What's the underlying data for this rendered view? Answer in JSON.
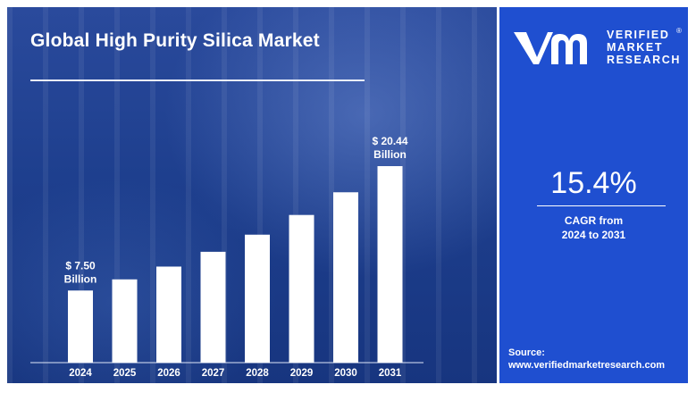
{
  "chart_data": {
    "type": "bar",
    "title": "Global High Purity Silica Market",
    "categories": [
      "2024",
      "2025",
      "2026",
      "2027",
      "2028",
      "2029",
      "2030",
      "2031"
    ],
    "values": [
      7.5,
      8.66,
      9.99,
      11.53,
      13.31,
      15.36,
      17.72,
      20.44
    ],
    "unit": "Billion",
    "annotations": [
      {
        "category": "2024",
        "line1": "$ 7.50",
        "line2": "Billion"
      },
      {
        "category": "2031",
        "line1": "$ 20.44",
        "line2": "Billion"
      }
    ],
    "bar_color": "#ffffff",
    "grid": false
  },
  "sidebar": {
    "brand_lines": [
      "VERIFIED",
      "MARKET",
      "RESEARCH"
    ],
    "registered_mark": "®",
    "cagr_value": "15.4%",
    "cagr_label_line1": "CAGR from",
    "cagr_label_line2": "2024 to 2031",
    "source_label": "Source:",
    "source_url": "www.verifiedmarketresearch.com",
    "accent_color": "#1f4fd0"
  }
}
